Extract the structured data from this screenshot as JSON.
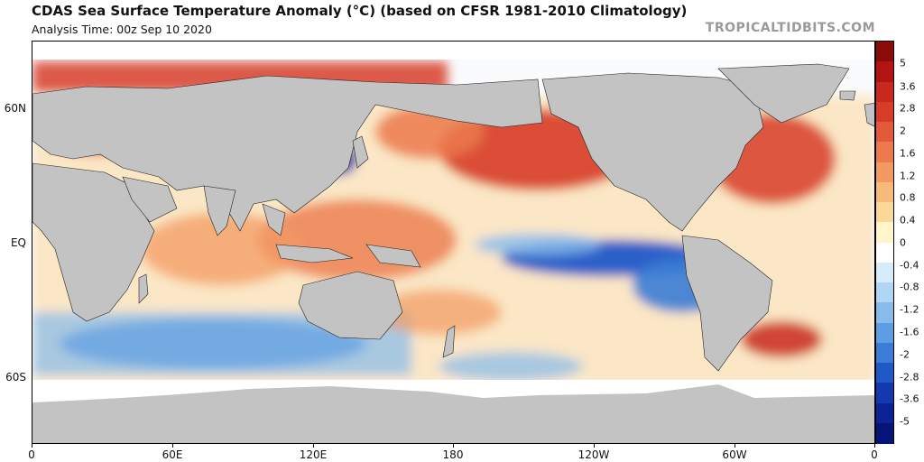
{
  "header": {
    "title": "CDAS Sea Surface Temperature Anomaly (°C) (based on CFSR 1981-2010 Climatology)",
    "analysis_time": "Analysis Time: 00z Sep 10 2020",
    "brand": "TROPICALTIDBITS.COM"
  },
  "axes": {
    "lat_labels": [
      "60N",
      "EQ",
      "60S"
    ],
    "lon_labels": [
      "0",
      "60E",
      "120E",
      "180",
      "120W",
      "60W",
      "0"
    ]
  },
  "colorbar": {
    "labels": [
      "5",
      "3.6",
      "2.8",
      "2",
      "1.6",
      "1.2",
      "0.8",
      "0.4",
      "0",
      "-0.4",
      "-0.8",
      "-1.2",
      "-1.6",
      "-2",
      "-2.8",
      "-3.6",
      "-5"
    ],
    "colors": [
      "#8b0a0a",
      "#b21414",
      "#c8281e",
      "#d73c28",
      "#e25a3a",
      "#ec7a4e",
      "#f39a62",
      "#f8ba7a",
      "#fcd898",
      "#fff5c8",
      "#ffffff",
      "#d7ecfa",
      "#b0d6f4",
      "#86bbec",
      "#5e9de2",
      "#3b7cd6",
      "#2058c8",
      "#1438b0",
      "#0c2396",
      "#061478"
    ],
    "unit": "°C"
  },
  "map": {
    "land_color": "#c3c3c3",
    "ice_color": "#ffffff",
    "warm_color": "#e4553a",
    "cool_color": "#3b7cd6"
  }
}
